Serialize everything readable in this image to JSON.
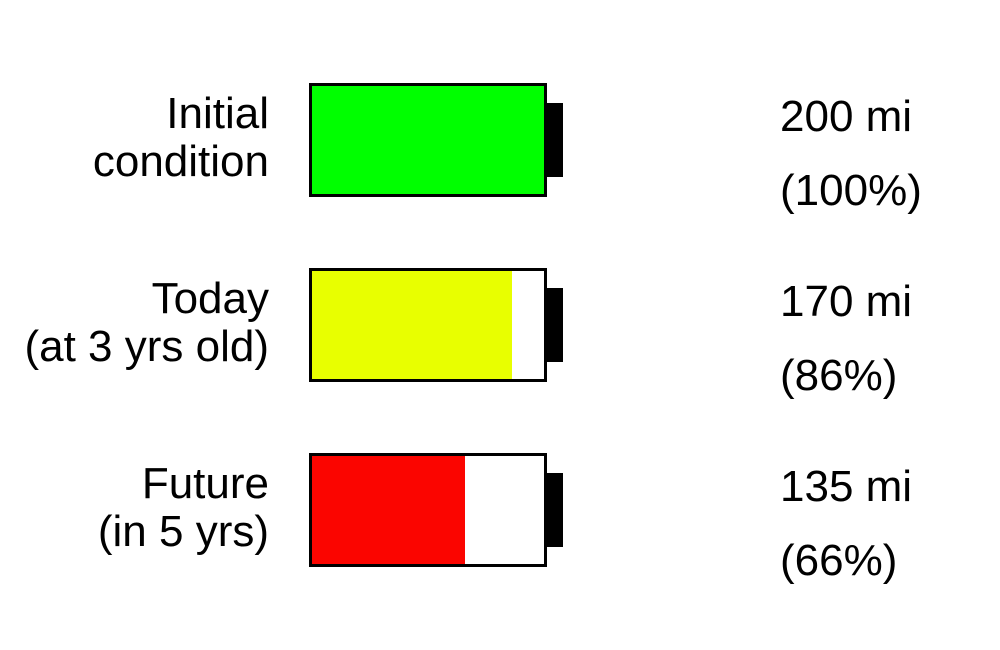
{
  "colors": {
    "initial": "#00ff00",
    "today": "#e8ff00",
    "future": "#fb0500"
  },
  "rows": [
    {
      "label_line1": "Initial",
      "label_line2": "condition",
      "range": "200 mi",
      "percent": "(100%)",
      "charge_fraction": 1.0,
      "color_key": "initial"
    },
    {
      "label_line1": "Today",
      "label_line2": "(at 3 yrs old)",
      "range": "170 mi",
      "percent": "(86%)",
      "charge_fraction": 0.86,
      "color_key": "today"
    },
    {
      "label_line1": "Future",
      "label_line2": "(in 5 yrs)",
      "range": "135 mi",
      "percent": "(66%)",
      "charge_fraction": 0.66,
      "color_key": "future"
    }
  ]
}
